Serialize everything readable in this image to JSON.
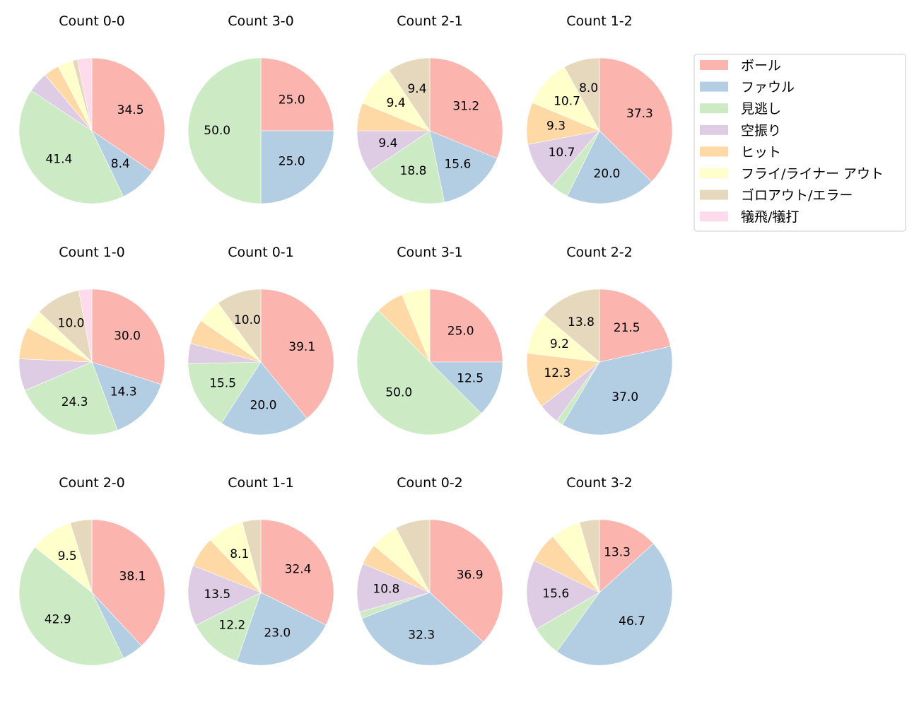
{
  "chart_data": {
    "type": "pie",
    "start_angle": 90,
    "direction": "clockwise",
    "label_format": "percent, one decimal, shown for slices of 8% or more",
    "legend": {
      "placement": "upper-right",
      "entries": [
        "ボール",
        "ファウル",
        "見逃し",
        "空振り",
        "ヒット",
        "フライ/ライナー アウト",
        "ゴロアウト/エラー",
        "犠飛/犠打"
      ]
    },
    "colors": [
      "#fbb4ae",
      "#b3cde3",
      "#ccebc5",
      "#decbe4",
      "#fed9a6",
      "#ffffcc",
      "#e5d8bd",
      "#fddaec"
    ],
    "charts": [
      {
        "title": "Count 0-0",
        "values": [
          34.5,
          8.4,
          41.4,
          4.6,
          3.4,
          3.4,
          1.1,
          3.2
        ]
      },
      {
        "title": "Count 1-0",
        "values": [
          30.0,
          14.3,
          24.3,
          7.1,
          7.1,
          4.3,
          10.0,
          2.9
        ]
      },
      {
        "title": "Count 2-0",
        "values": [
          38.1,
          4.8,
          42.9,
          0,
          0,
          9.5,
          4.8,
          0
        ]
      },
      {
        "title": "Count 3-0",
        "values": [
          25.0,
          25.0,
          50.0,
          0,
          0,
          0,
          0,
          0
        ]
      },
      {
        "title": "Count 0-1",
        "values": [
          39.1,
          20.0,
          15.5,
          4.5,
          5.5,
          5.4,
          10.0,
          0
        ]
      },
      {
        "title": "Count 1-1",
        "values": [
          32.4,
          23.0,
          12.2,
          13.5,
          6.8,
          8.1,
          4.1,
          0
        ]
      },
      {
        "title": "Count 2-1",
        "values": [
          31.2,
          15.6,
          18.8,
          9.4,
          6.2,
          9.4,
          9.4,
          0
        ]
      },
      {
        "title": "Count 3-1",
        "values": [
          25.0,
          12.5,
          50.0,
          0,
          6.25,
          6.25,
          0,
          0
        ]
      },
      {
        "title": "Count 0-2",
        "values": [
          36.9,
          32.3,
          1.5,
          10.8,
          4.6,
          6.2,
          7.7,
          0
        ]
      },
      {
        "title": "Count 1-2",
        "values": [
          37.3,
          20.0,
          4.0,
          10.7,
          9.3,
          10.7,
          8.0,
          0
        ]
      },
      {
        "title": "Count 2-2",
        "values": [
          21.5,
          36.9,
          1.5,
          4.6,
          12.3,
          9.2,
          13.8,
          0
        ]
      },
      {
        "title": "Count 3-2",
        "values": [
          13.3,
          46.7,
          6.7,
          15.6,
          6.7,
          6.7,
          4.4,
          0
        ]
      }
    ]
  }
}
